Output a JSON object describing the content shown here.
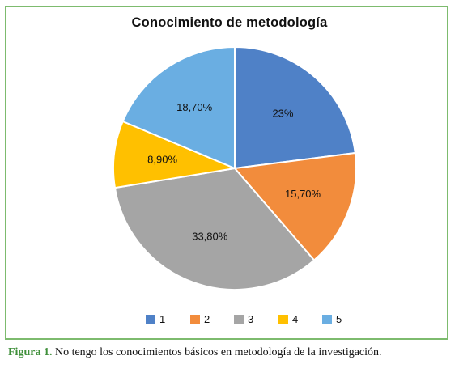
{
  "chart_data": {
    "type": "pie",
    "title": "Conocimiento de metodología",
    "categories": [
      "1",
      "2",
      "3",
      "4",
      "5"
    ],
    "values": [
      23,
      15.7,
      33.8,
      8.9,
      18.7
    ],
    "data_labels": [
      "23%",
      "15,70%",
      "33,80%",
      "8,90%",
      "18,70%"
    ],
    "colors": [
      "#4f81c7",
      "#f28c3c",
      "#a5a5a5",
      "#ffc000",
      "#6aaee2"
    ],
    "start_angle_deg": 0,
    "direction": "clockwise",
    "legend_position": "bottom"
  },
  "caption": {
    "label": "Figura 1.",
    "text": " No tengo los conocimientos básicos en metodología de la investigación."
  }
}
